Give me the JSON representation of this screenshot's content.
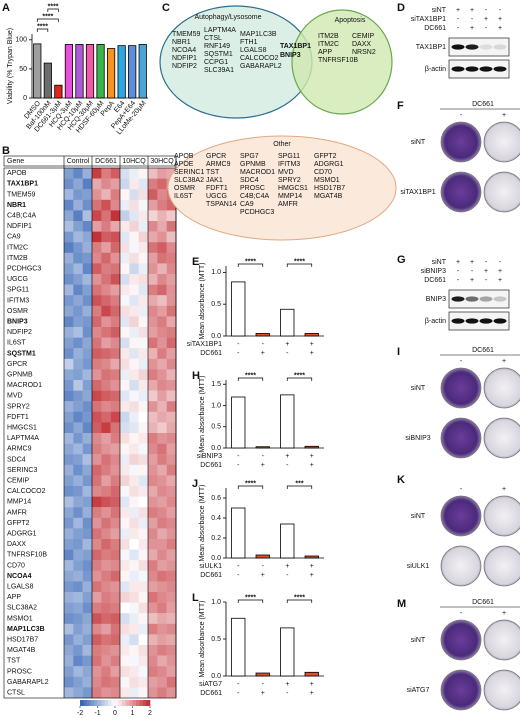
{
  "chart_data": [
    {
      "type": "bar",
      "letter": "A",
      "ylabel": "Viability (% Trypan Blue)",
      "categories": [
        "DMSO",
        "Baf-100nM",
        "DC661-3μM",
        "HCQ-3μM",
        "HCQ-10μM",
        "HCQ-30μM",
        "HDSF-60μM",
        "PepA",
        "E64",
        "PepA+E64",
        "LLoMe-20μM"
      ],
      "values": [
        93,
        60,
        22,
        92,
        92,
        92,
        92,
        85,
        90,
        90,
        92
      ],
      "colors": [
        "#9e9e9e",
        "#6d6d6d",
        "#e0261b",
        "#e84fd8",
        "#b05ad6",
        "#f25aa6",
        "#3ab54a",
        "#f7931e",
        "#2aa8e0",
        "#5a8fe0",
        "#4aa6d8"
      ],
      "ylim": [
        0,
        110
      ],
      "yticks": [
        0,
        50,
        100
      ],
      "annotations": [
        "****",
        "****",
        "****"
      ]
    },
    {
      "type": "bar",
      "letter": "E",
      "ylabel": "Mean absorbance (MTT)",
      "values": [
        0.85,
        0.04,
        0.42,
        0.04
      ],
      "colors": [
        "#ffffff",
        "#e0502b",
        "#ffffff",
        "#e0502b"
      ],
      "ylim": [
        0,
        1.1
      ],
      "yticks": [
        {
          "value": 0,
          "label": "0.0"
        },
        0.5,
        {
          "value": 1,
          "label": "1.0"
        }
      ],
      "conditions": [
        {
          "label": "siTAX1BP1",
          "signs": [
            "-",
            "-",
            "+",
            "+"
          ]
        },
        {
          "label": "DC661",
          "signs": [
            "-",
            "+",
            "-",
            "+"
          ]
        }
      ],
      "annotations": [
        "****",
        "****"
      ]
    },
    {
      "type": "bar",
      "letter": "H",
      "ylabel": "Mean absorbance (MTT)",
      "values": [
        1.2,
        0.03,
        1.25,
        0.04
      ],
      "colors": [
        "#ffffff",
        "#e0502b",
        "#ffffff",
        "#e0502b"
      ],
      "ylim": [
        0,
        1.6
      ],
      "yticks": [
        {
          "value": 0,
          "label": "0.0"
        },
        0.5,
        {
          "value": 1,
          "label": "1.0"
        },
        1.5
      ],
      "conditions": [
        {
          "label": "siBNIP3",
          "signs": [
            "-",
            "-",
            "+",
            "+"
          ]
        },
        {
          "label": "DC661",
          "signs": [
            "-",
            "+",
            "-",
            "+"
          ]
        }
      ],
      "annotations": [
        "****",
        "****"
      ]
    },
    {
      "type": "bar",
      "letter": "J",
      "ylabel": "Mean absorbance (MTT)",
      "values": [
        0.5,
        0.03,
        0.34,
        0.02
      ],
      "colors": [
        "#ffffff",
        "#e0502b",
        "#ffffff",
        "#e0502b"
      ],
      "ylim": [
        0,
        0.7
      ],
      "yticks": [
        {
          "value": 0,
          "label": "0.0"
        },
        0.2,
        0.4,
        0.6
      ],
      "conditions": [
        {
          "label": "siULK1",
          "signs": [
            "-",
            "-",
            "+",
            "+"
          ]
        },
        {
          "label": "DC661",
          "signs": [
            "-",
            "+",
            "-",
            "+"
          ]
        }
      ],
      "annotations": [
        "****",
        "***"
      ]
    },
    {
      "type": "bar",
      "letter": "L",
      "ylabel": "Mean absorbance (MTT)",
      "values": [
        0.78,
        0.04,
        0.65,
        0.05
      ],
      "colors": [
        "#ffffff",
        "#e0502b",
        "#ffffff",
        "#e0502b"
      ],
      "ylim": [
        0,
        1.0
      ],
      "yticks": [
        {
          "value": 0,
          "label": "0.0"
        },
        0.5,
        {
          "value": 1,
          "label": "1.0"
        }
      ],
      "conditions": [
        {
          "label": "siATG7",
          "signs": [
            "-",
            "-",
            "+",
            "+"
          ]
        },
        {
          "label": "DC661",
          "signs": [
            "-",
            "+",
            "-",
            "+"
          ]
        }
      ],
      "annotations": [
        "****",
        "****"
      ]
    }
  ],
  "heatmap": {
    "letter": "B",
    "gene_header": "Gene",
    "groups": [
      "Control",
      "DC661",
      "10HCQ",
      "30HCQ"
    ],
    "genes": [
      "APOB",
      "TAX1BP1",
      "TMEM59",
      "NBR1",
      "C4B;C4A",
      "NDFIP1",
      "CA9",
      "ITM2C",
      "ITM2B",
      "PCDHGC3",
      "UGCG",
      "SPG11",
      "IFITM3",
      "OSMR",
      "BNIP3",
      "NDFIP2",
      "IL6ST",
      "SQSTM1",
      "GPCR",
      "GPNMB",
      "MACROD1",
      "MVD",
      "SPRY2",
      "FDFT1",
      "HMGCS1",
      "LAPTM4A",
      "ARMC9",
      "SDC4",
      "SERINC3",
      "CEMIP",
      "CALCOCO2",
      "MMP14",
      "AMFR",
      "GFPT2",
      "ADGRG1",
      "DAXX",
      "TNFRSF10B",
      "CD70",
      "NCOA4",
      "LGALS8",
      "APP",
      "SLC38A2",
      "MSMO1",
      "MAP1LC3B",
      "HSD17B7",
      "MGAT4B",
      "TST",
      "PROSC",
      "GABARAPL2",
      "CTSL"
    ],
    "bold": [
      1,
      3,
      14,
      17,
      38,
      43
    ],
    "values": [
      [
        -1.2,
        -1.5,
        -1.0,
        1.8,
        1.2,
        1.5,
        -0.4,
        -0.2,
        0.1,
        0.6,
        0.9,
        0.8
      ],
      [
        -1.4,
        -1.1,
        -1.6,
        0.8,
        1.1,
        0.9,
        -0.5,
        0.2,
        -0.3,
        1.2,
        1.4,
        1.0
      ],
      [
        -0.9,
        -1.3,
        -1.2,
        1.0,
        0.7,
        1.2,
        0.1,
        -0.4,
        0.3,
        1.5,
        1.1,
        1.3
      ],
      [
        -1.5,
        -1.0,
        -1.4,
        1.3,
        1.6,
        1.1,
        -0.2,
        0.3,
        -0.1,
        0.9,
        1.2,
        1.4
      ],
      [
        -1.1,
        -1.6,
        -0.8,
        1.7,
        1.3,
        1.9,
        -0.6,
        -0.3,
        0.2,
        0.4,
        0.7,
        0.5
      ],
      [
        -0.8,
        -1.2,
        -1.5,
        0.9,
        1.2,
        0.8,
        0.2,
        0.4,
        -0.2,
        1.1,
        0.8,
        1.3
      ],
      [
        -1.3,
        -0.9,
        -1.1,
        1.9,
        1.5,
        1.6,
        -0.3,
        0.1,
        0.4,
        0.8,
        1.0,
        0.6
      ],
      [
        -1.6,
        -1.3,
        -1.0,
        1.2,
        0.9,
        1.4,
        0.3,
        -0.1,
        0.2,
        1.3,
        1.5,
        1.1
      ],
      [
        -1.0,
        -1.4,
        -1.3,
        1.1,
        1.4,
        1.0,
        -0.2,
        0.3,
        0.1,
        0.9,
        1.3,
        1.2
      ],
      [
        -1.2,
        -0.9,
        -1.5,
        1.5,
        1.2,
        1.3,
        0.1,
        -0.5,
        -0.2,
        1.0,
        0.7,
        1.1
      ],
      [
        -1.4,
        -1.2,
        -0.9,
        1.0,
        1.3,
        1.6,
        -0.4,
        0.2,
        0.3,
        0.7,
        1.1,
        0.9
      ],
      [
        -0.9,
        -1.5,
        -1.2,
        1.3,
        1.1,
        0.9,
        0.2,
        0.1,
        -0.3,
        1.2,
        1.4,
        1.0
      ],
      [
        -1.3,
        -1.1,
        -1.4,
        1.6,
        1.4,
        1.2,
        -0.1,
        -0.3,
        0.2,
        0.8,
        0.6,
        1.0
      ],
      [
        -1.1,
        -1.3,
        -1.0,
        1.2,
        1.7,
        1.4,
        0.3,
        0.2,
        -0.2,
        1.1,
        0.9,
        1.3
      ],
      [
        -1.5,
        -1.2,
        -1.3,
        1.4,
        1.0,
        1.2,
        -0.3,
        0.4,
        0.1,
        1.0,
        1.2,
        0.8
      ],
      [
        -1.0,
        -0.8,
        -1.4,
        1.1,
        1.3,
        1.5,
        0.1,
        -0.2,
        0.3,
        0.9,
        1.1,
        1.2
      ],
      [
        -1.2,
        -1.4,
        -1.1,
        1.3,
        0.9,
        1.1,
        -0.4,
        0.1,
        -0.1,
        1.3,
        1.0,
        1.4
      ],
      [
        -1.4,
        -1.0,
        -1.2,
        1.5,
        1.4,
        1.3,
        0.2,
        -0.3,
        0.2,
        0.7,
        1.2,
        0.9
      ],
      [
        -0.6,
        -1.1,
        -1.3,
        1.2,
        1.1,
        0.8,
        0.3,
        0.1,
        -0.2,
        1.0,
        0.8,
        1.1
      ],
      [
        -1.1,
        -1.2,
        -0.9,
        1.0,
        1.3,
        1.2,
        -0.2,
        0.2,
        0.4,
        1.2,
        1.0,
        0.7
      ],
      [
        -1.3,
        -0.7,
        -1.2,
        1.4,
        1.2,
        1.0,
        0.1,
        -0.4,
        0.2,
        0.8,
        1.1,
        1.0
      ],
      [
        -1.5,
        -1.3,
        -1.1,
        1.7,
        1.5,
        1.4,
        -0.3,
        -0.1,
        -0.2,
        0.5,
        0.9,
        0.6
      ],
      [
        -1.0,
        -1.2,
        -1.4,
        1.3,
        1.1,
        1.2,
        0.2,
        0.3,
        0.1,
        1.0,
        0.7,
        1.2
      ],
      [
        -1.2,
        -1.5,
        -1.3,
        1.6,
        1.4,
        1.7,
        -0.5,
        -0.2,
        0.0,
        0.6,
        0.8,
        0.7
      ],
      [
        -1.4,
        -1.1,
        -1.5,
        1.5,
        1.8,
        1.3,
        -0.4,
        -0.3,
        0.1,
        0.7,
        0.5,
        0.8
      ],
      [
        -0.9,
        -1.3,
        -1.0,
        1.1,
        0.9,
        1.2,
        0.3,
        0.1,
        0.2,
        1.2,
        1.0,
        1.1
      ],
      [
        -1.1,
        -0.9,
        -1.3,
        1.2,
        1.0,
        0.9,
        0.1,
        0.2,
        -0.1,
        1.1,
        1.3,
        0.9
      ],
      [
        -1.3,
        -1.2,
        -0.8,
        1.0,
        1.3,
        1.1,
        -0.2,
        0.4,
        0.3,
        0.9,
        1.2,
        1.0
      ],
      [
        -1.0,
        -1.4,
        -1.1,
        1.4,
        1.2,
        1.0,
        0.2,
        -0.1,
        0.1,
        1.0,
        0.8,
        1.2
      ],
      [
        -1.2,
        -1.0,
        -1.3,
        1.3,
        0.9,
        1.2,
        0.4,
        0.2,
        -0.3,
        1.1,
        1.0,
        0.8
      ],
      [
        -1.4,
        -1.3,
        -0.9,
        1.1,
        1.2,
        1.4,
        -0.1,
        0.3,
        0.2,
        0.8,
        1.1,
        1.0
      ],
      [
        -0.8,
        -1.1,
        -1.2,
        1.8,
        1.6,
        1.5,
        -0.3,
        0.1,
        0.0,
        1.0,
        0.9,
        1.1
      ],
      [
        -1.1,
        -1.4,
        -1.0,
        1.2,
        1.0,
        1.3,
        0.2,
        -0.2,
        0.3,
        1.2,
        1.1,
        0.9
      ],
      [
        -1.3,
        -0.9,
        -1.4,
        1.0,
        1.3,
        1.1,
        0.1,
        0.3,
        -0.2,
        0.9,
        1.2,
        1.1
      ],
      [
        -1.0,
        -1.2,
        -1.3,
        1.3,
        1.1,
        0.9,
        -0.2,
        0.2,
        0.1,
        1.1,
        0.8,
        1.0
      ],
      [
        -1.2,
        -1.3,
        -0.9,
        1.1,
        1.4,
        1.2,
        0.3,
        0.0,
        0.2,
        1.0,
        1.0,
        1.2
      ],
      [
        -1.5,
        -1.1,
        -1.2,
        1.4,
        1.2,
        1.3,
        -0.1,
        -0.3,
        0.1,
        0.8,
        1.1,
        0.9
      ],
      [
        -0.9,
        -1.2,
        -1.4,
        1.2,
        1.0,
        1.1,
        0.2,
        0.1,
        0.3,
        1.2,
        0.9,
        1.0
      ],
      [
        -1.1,
        -1.0,
        -1.3,
        1.0,
        1.2,
        1.4,
        0.1,
        -0.2,
        -0.1,
        1.1,
        1.3,
        1.2
      ],
      [
        -1.3,
        -1.4,
        -1.0,
        1.3,
        1.1,
        1.0,
        -0.3,
        0.2,
        0.2,
        0.9,
        1.0,
        1.1
      ],
      [
        -1.0,
        -0.9,
        -1.2,
        0.9,
        1.2,
        1.1,
        0.4,
        0.3,
        0.1,
        1.3,
        1.1,
        1.0
      ],
      [
        -1.2,
        -1.1,
        -1.4,
        1.2,
        1.3,
        1.2,
        0.0,
        -0.1,
        0.3,
        1.0,
        1.2,
        0.9
      ],
      [
        -1.4,
        -1.3,
        -1.1,
        1.6,
        1.4,
        1.5,
        -0.4,
        -0.2,
        0.1,
        0.6,
        0.8,
        0.7
      ],
      [
        -0.8,
        -1.2,
        -1.0,
        1.1,
        0.9,
        1.3,
        0.3,
        0.2,
        -0.2,
        1.2,
        1.0,
        1.1
      ],
      [
        -1.3,
        -1.0,
        -1.2,
        1.5,
        1.3,
        1.4,
        -0.2,
        -0.4,
        0.0,
        0.7,
        0.9,
        0.8
      ],
      [
        -1.1,
        -1.3,
        -0.9,
        1.2,
        1.1,
        1.0,
        0.2,
        0.1,
        0.3,
        1.0,
        1.2,
        1.1
      ],
      [
        -1.0,
        -1.5,
        -1.3,
        1.3,
        1.0,
        1.2,
        0.1,
        -0.1,
        0.2,
        1.1,
        0.8,
        1.0
      ],
      [
        -1.2,
        -0.9,
        -1.1,
        1.0,
        1.2,
        0.9,
        0.3,
        0.2,
        -0.1,
        1.2,
        1.1,
        0.9
      ],
      [
        -1.4,
        -1.2,
        -1.0,
        1.1,
        1.3,
        1.2,
        -0.1,
        0.3,
        0.2,
        0.9,
        1.0,
        1.3
      ],
      [
        -0.9,
        -1.1,
        -1.3,
        1.2,
        1.0,
        1.1,
        0.2,
        -0.2,
        0.1,
        1.0,
        1.2,
        1.0
      ]
    ],
    "scale_ticks": [
      -2,
      -1,
      0,
      1,
      2
    ]
  },
  "venn": {
    "letter": "C",
    "sets": [
      {
        "title": "Autophagy/Lysosome",
        "columns": [
          [
            "TMEM59",
            "NBR1",
            "NCOA4",
            "NDFIP1",
            "NDFIP2"
          ],
          [
            "LAPTM4A",
            "CTSL",
            "RNF149",
            "SQSTM1",
            "CCPG1",
            "SLC39A1"
          ],
          [
            "MAP1LC3B",
            "FTH1",
            "LGALS8",
            "CALCOCO2",
            "GABARAPL2"
          ]
        ]
      },
      {
        "title": "Apoptosis",
        "columns": [
          [
            "ITM2B",
            "ITM2C",
            "APP",
            "TNFRSF10B"
          ],
          [
            "CEMIP",
            "DAXX",
            "NRSN2"
          ]
        ]
      }
    ],
    "overlap": [
      "TAX1BP1",
      "BNIP3"
    ],
    "other": {
      "title": "Other",
      "columns": [
        [
          "APOB",
          "APOE",
          "SERINC1",
          "SLC38A2",
          "OSMR",
          "IL6ST"
        ],
        [
          "GPCR",
          "ARMC9",
          "TST",
          "JAK1",
          "FDFT1",
          "UGCG",
          "TSPAN14"
        ],
        [
          "SPG7",
          "GPNMB",
          "MACROD1",
          "SDC4",
          "PROSC",
          "C4B;C4A",
          "CA9",
          "PCDHGC3"
        ],
        [
          "SPG11",
          "IFITM3",
          "MVD",
          "SPRY2",
          "HMGCS1",
          "MMP14",
          "AMFR"
        ],
        [
          "GFPT2",
          "ADGRG1",
          "CD70",
          "MSMO1",
          "HSD17B7",
          "MGAT4B"
        ]
      ]
    }
  },
  "blots": [
    {
      "letter": "D",
      "conditions": [
        {
          "label": "siNT",
          "signs": [
            "+",
            "+",
            "-",
            "-"
          ]
        },
        {
          "label": "siTAX1BP1",
          "signs": [
            "-",
            "-",
            "+",
            "+"
          ]
        },
        {
          "label": "DC661",
          "signs": [
            "-",
            "+",
            "-",
            "+"
          ]
        }
      ],
      "bands": [
        "TAX1BP1",
        "β-actin"
      ]
    },
    {
      "letter": "G",
      "conditions": [
        {
          "label": "siNT",
          "signs": [
            "+",
            "+",
            "-",
            "-"
          ]
        },
        {
          "label": "siBNIP3",
          "signs": [
            "-",
            "-",
            "+",
            "+"
          ]
        },
        {
          "label": "DC661",
          "signs": [
            "-",
            "+",
            "-",
            "+"
          ]
        }
      ],
      "bands": [
        "BNIP3",
        "β-actin"
      ]
    }
  ],
  "plates": [
    {
      "letter": "F",
      "header": "DC661",
      "signs": [
        "-",
        "+"
      ],
      "rows": [
        "siNT",
        "siTAX1BP1"
      ]
    },
    {
      "letter": "I",
      "header": "DC661",
      "signs": [
        "-",
        "+"
      ],
      "rows": [
        "siNT",
        "siBNIP3"
      ]
    },
    {
      "letter": "K",
      "signs": [
        "-",
        "+"
      ],
      "rows": [
        "siNT",
        "siULK1"
      ]
    },
    {
      "letter": "M",
      "header": "DC661",
      "signs": [
        "-",
        "+"
      ],
      "rows": [
        "siNT",
        "siATG7"
      ]
    }
  ]
}
